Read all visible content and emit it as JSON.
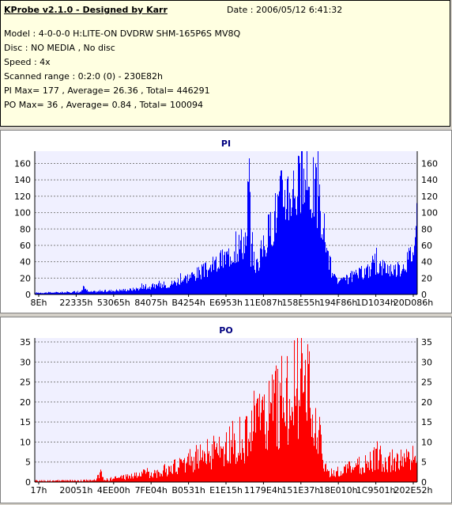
{
  "info": {
    "title": "KProbe v2.1.0 - Designed by Karr",
    "date": "Date : 2006/05/12 6:41:32",
    "model": "Model : 4-0-0-0 H:LITE-ON DVDRW SHM-165P6S MV8Q",
    "disc": "Disc : NO MEDIA , No disc",
    "speed": "Speed : 4x",
    "scanned": "Scanned range : 0:2:0 (0) - 230E82h",
    "pi_stats": "PI Max= 177 , Average= 26.36 , Total= 446291",
    "po_stats": "PO Max= 36 , Average= 0.84 , Total= 100094"
  },
  "chart_data": [
    {
      "type": "bar",
      "title": "PI",
      "color": "#0000ff",
      "ylim": [
        0,
        175
      ],
      "yticks": [
        0,
        20,
        40,
        60,
        80,
        100,
        120,
        140,
        160
      ],
      "xticks": [
        "8Eh",
        "22335h",
        "53065h",
        "84075h",
        "B4254h",
        "E6953h",
        "11E087h",
        "158E55h",
        "194F86h",
        "1D1034h",
        "20D086h"
      ],
      "grid": true,
      "profile_x": [
        0,
        0.12,
        0.13,
        0.14,
        0.25,
        0.35,
        0.45,
        0.5,
        0.555,
        0.56,
        0.565,
        0.58,
        0.6,
        0.65,
        0.7,
        0.73,
        0.75,
        0.76,
        0.78,
        0.8,
        0.85,
        0.9,
        0.95,
        0.98,
        1.0
      ],
      "profile_y": [
        2,
        3,
        8,
        3,
        6,
        12,
        30,
        45,
        70,
        175,
        50,
        35,
        60,
        125,
        135,
        130,
        100,
        70,
        20,
        15,
        25,
        35,
        30,
        45,
        65
      ],
      "noise": 0.35,
      "max": 177
    },
    {
      "type": "bar",
      "title": "PO",
      "color": "#ff0000",
      "ylim": [
        0,
        36
      ],
      "yticks": [
        0,
        5,
        10,
        15,
        20,
        25,
        30,
        35
      ],
      "xticks": [
        "17h",
        "20051h",
        "4EE00h",
        "7FE04h",
        "B0531h",
        "E1E15h",
        "1179E4h",
        "151E37h",
        "18E010h",
        "1C9501h",
        "202E52h"
      ],
      "grid": true,
      "profile_x": [
        0,
        0.16,
        0.17,
        0.18,
        0.25,
        0.35,
        0.45,
        0.5,
        0.55,
        0.6,
        0.65,
        0.7,
        0.73,
        0.75,
        0.76,
        0.78,
        0.85,
        0.9,
        0.95,
        1.0
      ],
      "profile_y": [
        0.3,
        0.4,
        2.5,
        0.5,
        1.5,
        3,
        7,
        9,
        11,
        15,
        22,
        25,
        18,
        8,
        3,
        2,
        4,
        6,
        5,
        6
      ],
      "noise": 0.6,
      "max": 36
    }
  ]
}
